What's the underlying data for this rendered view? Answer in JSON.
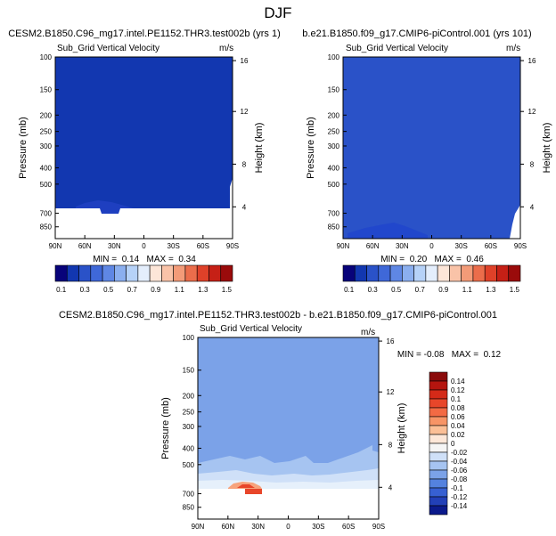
{
  "page_title": "DJF",
  "chart_data": [
    {
      "type": "heatmap",
      "title": "CESM2.B1850.C96_mg17.intel.PE1152.THR3.test002b (yrs 1)",
      "subtitle": "Sub_Grid Vertical Velocity",
      "units": "m/s",
      "ylabel": "Pressure (mb)",
      "ylabel_right": "Height (km)",
      "xticks": [
        "90N",
        "60N",
        "30N",
        "0",
        "30S",
        "60S",
        "90S"
      ],
      "yticks_pressure": [
        "100",
        "150",
        "200",
        "250",
        "300",
        "400",
        "500",
        "700",
        "850"
      ],
      "yticks_height": [
        "16",
        "12",
        "8",
        "4"
      ],
      "min_max_text": "MIN =  0.14   MAX =  0.34",
      "field_value": 0.2,
      "colorbar": {
        "labels": [
          "0.1",
          "0.3",
          "0.5",
          "0.7",
          "0.9",
          "1.1",
          "1.3",
          "1.5"
        ],
        "colors": [
          "#08037a",
          "#1237b0",
          "#2a52c8",
          "#3f68d8",
          "#5f87e4",
          "#8bafef",
          "#b6d2f8",
          "#e4eefc",
          "#fde6d8",
          "#f9c3a8",
          "#f39b78",
          "#eb6d4b",
          "#df4129",
          "#c62016",
          "#9a0b0b"
        ]
      }
    },
    {
      "type": "heatmap",
      "title": "b.e21.B1850.f09_g17.CMIP6-piControl.001 (yrs 101)",
      "subtitle": "Sub_Grid Vertical Velocity",
      "units": "m/s",
      "ylabel": "Pressure (mb)",
      "ylabel_right": "Height (km)",
      "xticks": [
        "90N",
        "60N",
        "30N",
        "0",
        "30S",
        "60S",
        "90S"
      ],
      "yticks_pressure": [
        "100",
        "150",
        "200",
        "250",
        "300",
        "400",
        "500",
        "700",
        "850"
      ],
      "yticks_height": [
        "16",
        "12",
        "8",
        "4"
      ],
      "min_max_text": "MIN =  0.20   MAX =  0.46",
      "field_value": 0.3,
      "colorbar": {
        "labels": [
          "0.1",
          "0.3",
          "0.5",
          "0.7",
          "0.9",
          "1.1",
          "1.3",
          "1.5"
        ],
        "colors": [
          "#08037a",
          "#1237b0",
          "#2a52c8",
          "#3f68d8",
          "#5f87e4",
          "#8bafef",
          "#b6d2f8",
          "#e4eefc",
          "#fde6d8",
          "#f9c3a8",
          "#f39b78",
          "#eb6d4b",
          "#df4129",
          "#c62016",
          "#9a0b0b"
        ]
      }
    },
    {
      "type": "heatmap",
      "title": "CESM2.B1850.C96_mg17.intel.PE1152.THR3.test002b - b.e21.B1850.f09_g17.CMIP6-piControl.001",
      "subtitle": "Sub_Grid Vertical Velocity",
      "units": "m/s",
      "ylabel": "Pressure (mb)",
      "ylabel_right": "Height (km)",
      "xticks": [
        "90N",
        "60N",
        "30N",
        "0",
        "30S",
        "60S",
        "90S"
      ],
      "yticks_pressure": [
        "100",
        "150",
        "200",
        "250",
        "300",
        "400",
        "500",
        "700",
        "850"
      ],
      "yticks_height": [
        "16",
        "12",
        "8",
        "4"
      ],
      "min_max_text": "MIN = -0.08   MAX =  0.12",
      "field_value": -0.07,
      "colorbar": {
        "labels": [
          "0.14",
          "0.12",
          "0.1",
          "0.08",
          "0.06",
          "0.04",
          "0.02",
          "0",
          "-0.02",
          "-0.04",
          "-0.06",
          "-0.08",
          "-0.1",
          "-0.12",
          "-0.14"
        ],
        "colors": [
          "#8a0a0a",
          "#b5150f",
          "#d42a18",
          "#e8462a",
          "#f36a44",
          "#f79466",
          "#fbbf96",
          "#fde7d8",
          "#f5f5f5",
          "#cfe0f8",
          "#a6c4f1",
          "#7ba2e8",
          "#5482df",
          "#3760d2",
          "#2240b8",
          "#0b1a8c"
        ]
      }
    }
  ]
}
